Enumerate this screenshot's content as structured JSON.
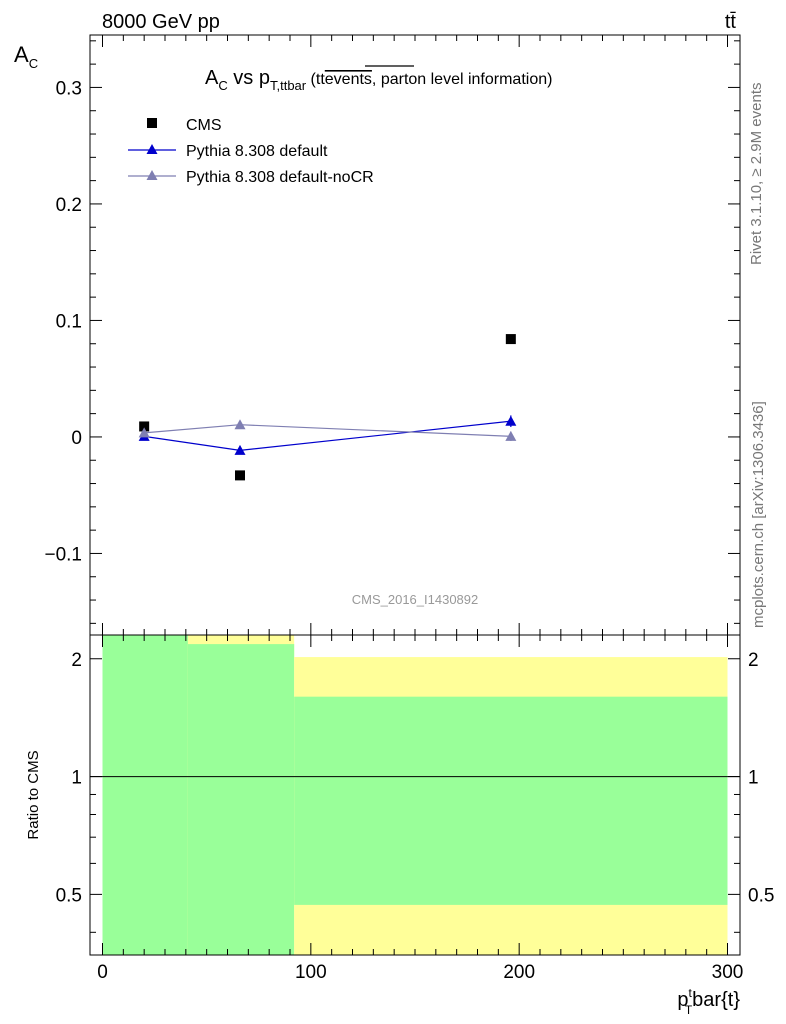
{
  "header": {
    "energy_label": "8000 GeV pp",
    "process_label": "tt̄"
  },
  "side_labels": {
    "rivet": "Rivet 3.1.10, ≥ 2.9M events",
    "source": "mcplots.cern.ch [arXiv:1306.3436]"
  },
  "chart_data": [
    {
      "type": "scatter",
      "title_parts": {
        "main": "A",
        "main_sub": "C",
        "vs": " vs p",
        "vs_sub": "T,ttbar",
        "note_a": " (tt",
        "note_b": "events",
        "note_c": ", parton level information)"
      },
      "ylabel": "A",
      "ylabel_sub": "C",
      "ylim": [
        -0.17,
        0.345
      ],
      "y_ticks": [
        -0.1,
        0,
        0.1,
        0.2,
        0.3
      ],
      "y_tick_labels": [
        "−0.1",
        "0",
        "0.1",
        "0.2",
        "0.3"
      ],
      "xlim": [
        -6,
        306
      ],
      "series": [
        {
          "name": "CMS",
          "marker": "square",
          "color": "#000000",
          "x": [
            20,
            66,
            196
          ],
          "y": [
            0.009,
            -0.033,
            0.084
          ]
        },
        {
          "name": "Pythia 8.308 default",
          "marker": "triangle",
          "color": "#0000cc",
          "x": [
            20,
            66,
            196
          ],
          "y": [
            0.0005,
            -0.0115,
            0.0135
          ],
          "yerr": [
            0.003,
            0.003,
            0.005
          ]
        },
        {
          "name": "Pythia 8.308 default-noCR",
          "marker": "triangle",
          "color": "#7f7fb2",
          "x": [
            20,
            66,
            196
          ],
          "y": [
            0.0035,
            0.0105,
            0.0005
          ],
          "yerr": [
            0.003,
            0.003,
            0.004
          ]
        }
      ],
      "watermark": "CMS_2016_I1430892",
      "legend_position": "top-left"
    },
    {
      "type": "area",
      "ylabel": "Ratio to CMS",
      "ylim": [
        0.35,
        2.3
      ],
      "y_ticks": [
        0.5,
        1,
        2
      ],
      "y_tick_labels": [
        "0.5",
        "1",
        "2"
      ],
      "xlim": [
        -6,
        306
      ],
      "x_ticks": [
        0,
        100,
        200,
        300
      ],
      "x_tick_labels": [
        "0",
        "100",
        "200",
        "300"
      ],
      "xlabel_parts": {
        "p": "p",
        "sup": "t",
        "sub": "T",
        "rest": "bar{t}"
      },
      "bands": [
        {
          "x0": 0,
          "x1": 41,
          "yellow": [
            0.35,
            2.3
          ],
          "green": [
            0.35,
            2.3
          ]
        },
        {
          "x0": 41,
          "x1": 92,
          "yellow": [
            0.35,
            2.3
          ],
          "green": [
            0.35,
            2.18
          ]
        },
        {
          "x0": 92,
          "x1": 300,
          "yellow": [
            0.35,
            2.02
          ],
          "green": [
            0.47,
            1.6
          ]
        }
      ],
      "reference_line": 1,
      "colors": {
        "yellow": "#ffff99",
        "green": "#99ff99"
      }
    }
  ]
}
